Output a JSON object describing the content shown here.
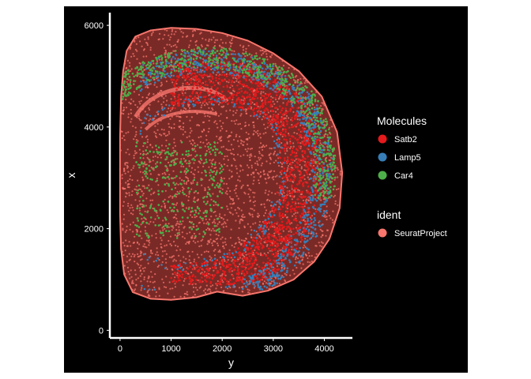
{
  "chart_data": {
    "type": "scatter",
    "title": "",
    "xlabel": "y",
    "ylabel": "x",
    "xlim": [
      -200,
      4550
    ],
    "ylim": [
      -150,
      6250
    ],
    "x_ticks": [
      0,
      1000,
      2000,
      3000,
      4000
    ],
    "y_ticks": [
      0,
      2000,
      4000,
      6000
    ],
    "grid": false,
    "legend_position": "right",
    "background": "#000000",
    "legend": [
      {
        "title": "Molecules",
        "entries": [
          {
            "label": "Satb2",
            "color": "#e41a1c"
          },
          {
            "label": "Lamp5",
            "color": "#377eb8"
          },
          {
            "label": "Car4",
            "color": "#4daf4a"
          }
        ]
      },
      {
        "title": "ident",
        "entries": [
          {
            "label": "SeuratProject",
            "color": "#f8766d"
          }
        ]
      }
    ],
    "series": [
      {
        "name": "SeuratProject",
        "color": "#f8766d",
        "region": "coronal brain section outline",
        "x_range": [
          0,
          4350
        ],
        "y_range": [
          650,
          5950
        ]
      },
      {
        "name": "Satb2",
        "color": "#e41a1c",
        "region": "outer cortical band",
        "x_range": [
          1000,
          4300
        ],
        "y_range": [
          900,
          5800
        ]
      },
      {
        "name": "Lamp5",
        "color": "#377eb8",
        "region": "cortical surface layer",
        "x_range": [
          400,
          4350
        ],
        "y_range": [
          800,
          5900
        ]
      },
      {
        "name": "Car4",
        "color": "#4daf4a",
        "region": "cortex and thalamus",
        "x_range": [
          0,
          4300
        ],
        "y_range": [
          1500,
          5900
        ]
      }
    ]
  }
}
